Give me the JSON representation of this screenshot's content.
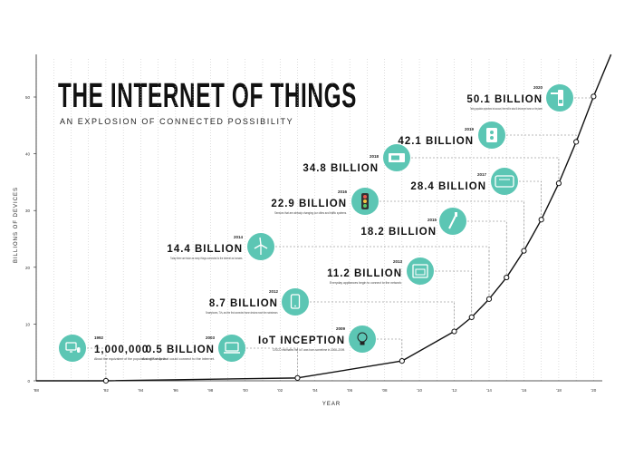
{
  "title": "THE INTERNET OF THINGS",
  "subtitle": "AN EXPLOSION OF CONNECTED POSSIBILITY",
  "colors": {
    "accent": "#5cc6b4",
    "line": "#111111",
    "text": "#1a1a1a",
    "grid": "#bdbdbd"
  },
  "chart_data": {
    "type": "line",
    "xlabel": "YEAR",
    "ylabel": "BILLIONS OF DEVICES",
    "xlim": [
      1988,
      2020.5
    ],
    "ylim": [
      0,
      50
    ],
    "x_ticks": [
      "'88",
      "'92",
      "'94",
      "'96",
      "'98",
      "'00",
      "'02",
      "'04",
      "'06",
      "'08",
      "'10",
      "'12",
      "'14",
      "'16",
      "'18",
      "'20"
    ],
    "x_tick_values": [
      1988,
      1992,
      1994,
      1996,
      1998,
      2000,
      2002,
      2004,
      2006,
      2008,
      2010,
      2012,
      2014,
      2016,
      2018,
      2020
    ],
    "y_ticks": [
      "0",
      "10",
      "20",
      "30",
      "40",
      "50"
    ],
    "y_tick_values": [
      0,
      10,
      20,
      30,
      40,
      50
    ],
    "series": [
      {
        "x": [
          1988,
          1992,
          2003,
          2009,
          2012,
          2013,
          2014,
          2015,
          2016,
          2017,
          2018,
          2019,
          2020,
          2021
        ],
        "y": [
          0,
          0.001,
          0.5,
          3.5,
          8.7,
          11.2,
          14.4,
          18.2,
          22.9,
          28.4,
          34.8,
          42.1,
          50.1,
          57.5
        ]
      }
    ],
    "annotations": [
      {
        "year_label": "1992",
        "year": 1992,
        "value": 0.001,
        "label": "1,000,000",
        "icon": "computer-mouse-icon",
        "desc": "About the equivalent of the population of San Jose."
      },
      {
        "year_label": "2003",
        "year": 2003,
        "value": 0.5,
        "label": "0.5 BILLION",
        "icon": "laptop-icon",
        "desc": "A single chip that could connect to the internet."
      },
      {
        "year_label": "2009",
        "year": 2009,
        "value": 3.5,
        "label": "IoT INCEPTION",
        "icon": "lightbulb-icon",
        "desc": "CISCO estimates the IoT was born sometime in 2008–2009."
      },
      {
        "year_label": "2012",
        "year": 2012,
        "value": 8.7,
        "label": "8.7 BILLION",
        "icon": "phone-icon",
        "desc": "Smartphones, TVs, and the first connected home devices reach the mainstream."
      },
      {
        "year_label": "2013",
        "year": 2013,
        "value": 11.2,
        "label": "11.2 BILLION",
        "icon": "oven-icon",
        "desc": "Everyday appliances begin to connect to the network."
      },
      {
        "year_label": "2014",
        "year": 2014,
        "value": 14.4,
        "label": "14.4 BILLION",
        "icon": "wind-turbine-icon",
        "desc": "Today there are twice as many things connected to the internet as humans."
      },
      {
        "year_label": "2015",
        "year": 2015,
        "value": 18.2,
        "label": "18.2 BILLION",
        "icon": "toothbrush-icon",
        "desc": ""
      },
      {
        "year_label": "2016",
        "year": 2016,
        "value": 22.9,
        "label": "22.9 BILLION",
        "icon": "traffic-light-icon",
        "desc": "Sensors that are already changing our cities and traffic systems."
      },
      {
        "year_label": "2017",
        "year": 2017,
        "value": 28.4,
        "label": "28.4 BILLION",
        "icon": "toaster-icon",
        "desc": ""
      },
      {
        "year_label": "2018",
        "year": 2018,
        "value": 34.8,
        "label": "34.8 BILLION",
        "icon": "thermostat-icon",
        "desc": ""
      },
      {
        "year_label": "2019",
        "year": 2019,
        "value": 42.1,
        "label": "42.1 BILLION",
        "icon": "power-outlet-icon",
        "desc": ""
      },
      {
        "year_label": "2020",
        "year": 2020,
        "value": 50.1,
        "label": "50.1 BILLION",
        "icon": "door-lock-icon",
        "desc": "Taking population projections into account, there will be about 6 devices per human on the planet."
      }
    ]
  }
}
